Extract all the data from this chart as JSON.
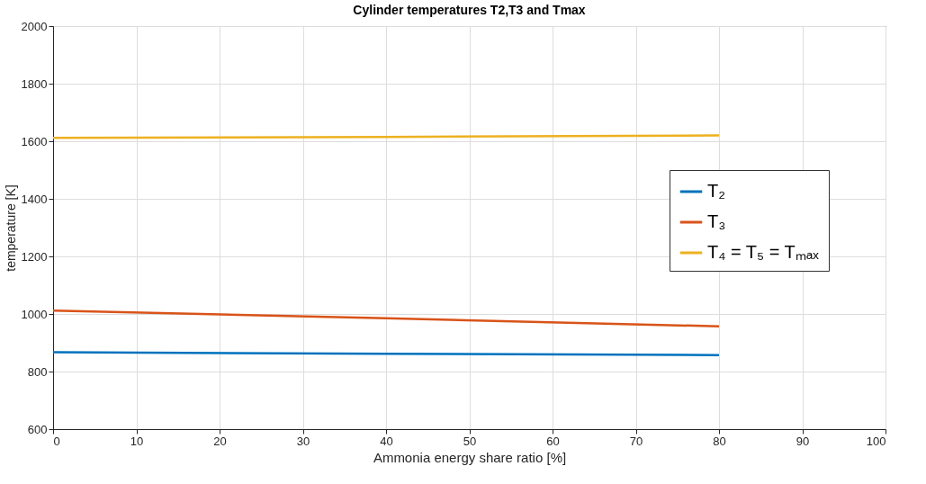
{
  "chart_data": {
    "type": "line",
    "title": "Cylinder temperatures T2,T3 and Tmax",
    "xlabel": "Ammonia energy share ratio [%]",
    "ylabel": "temperature [K]",
    "x": [
      0,
      40,
      80
    ],
    "series": [
      {
        "name": "T₂",
        "color": "#0072bd",
        "values": [
          867,
          862,
          857
        ]
      },
      {
        "name": "T₃",
        "color": "#d95319",
        "values": [
          1012,
          985,
          957
        ]
      },
      {
        "name": "T₄ = T₅ = Tₘₐₓ",
        "color": "#edb120",
        "values": [
          1612,
          1615,
          1620
        ]
      }
    ],
    "xlim": [
      0,
      100
    ],
    "xticks": [
      0,
      10,
      20,
      30,
      40,
      50,
      60,
      70,
      80,
      90,
      100
    ],
    "ylim": [
      600,
      2000
    ],
    "yticks": [
      600,
      800,
      1000,
      1200,
      1400,
      1600,
      1800,
      2000
    ],
    "grid": true,
    "legend": "right",
    "marker": "none",
    "line_style": "solid"
  }
}
